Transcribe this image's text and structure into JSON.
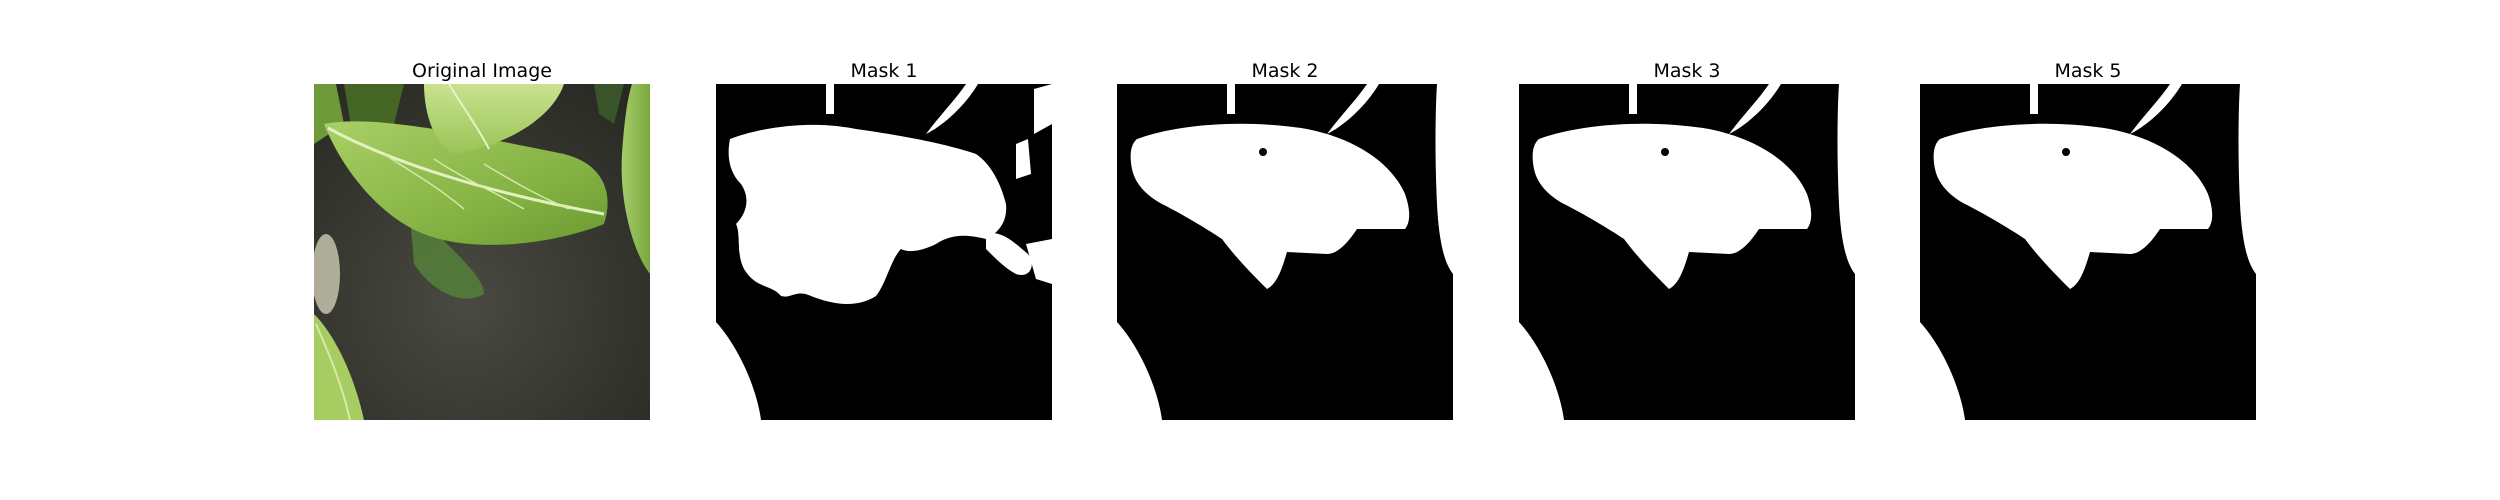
{
  "figure": {
    "panels": [
      {
        "title": "Original Image",
        "kind": "photo",
        "subject": "green-leaves"
      },
      {
        "title": "Mask 1",
        "kind": "mask"
      },
      {
        "title": "Mask 2",
        "kind": "mask"
      },
      {
        "title": "Mask 3",
        "kind": "mask"
      },
      {
        "title": "Mask 5",
        "kind": "mask"
      }
    ],
    "colors": {
      "background": "#ffffff",
      "mask_foreground": "#ffffff",
      "mask_background": "#000000",
      "leaf_light": "#b9d77a",
      "leaf_mid": "#8fbf4f",
      "leaf_dark": "#5d8a2c",
      "soil": "#3a3a34"
    }
  }
}
